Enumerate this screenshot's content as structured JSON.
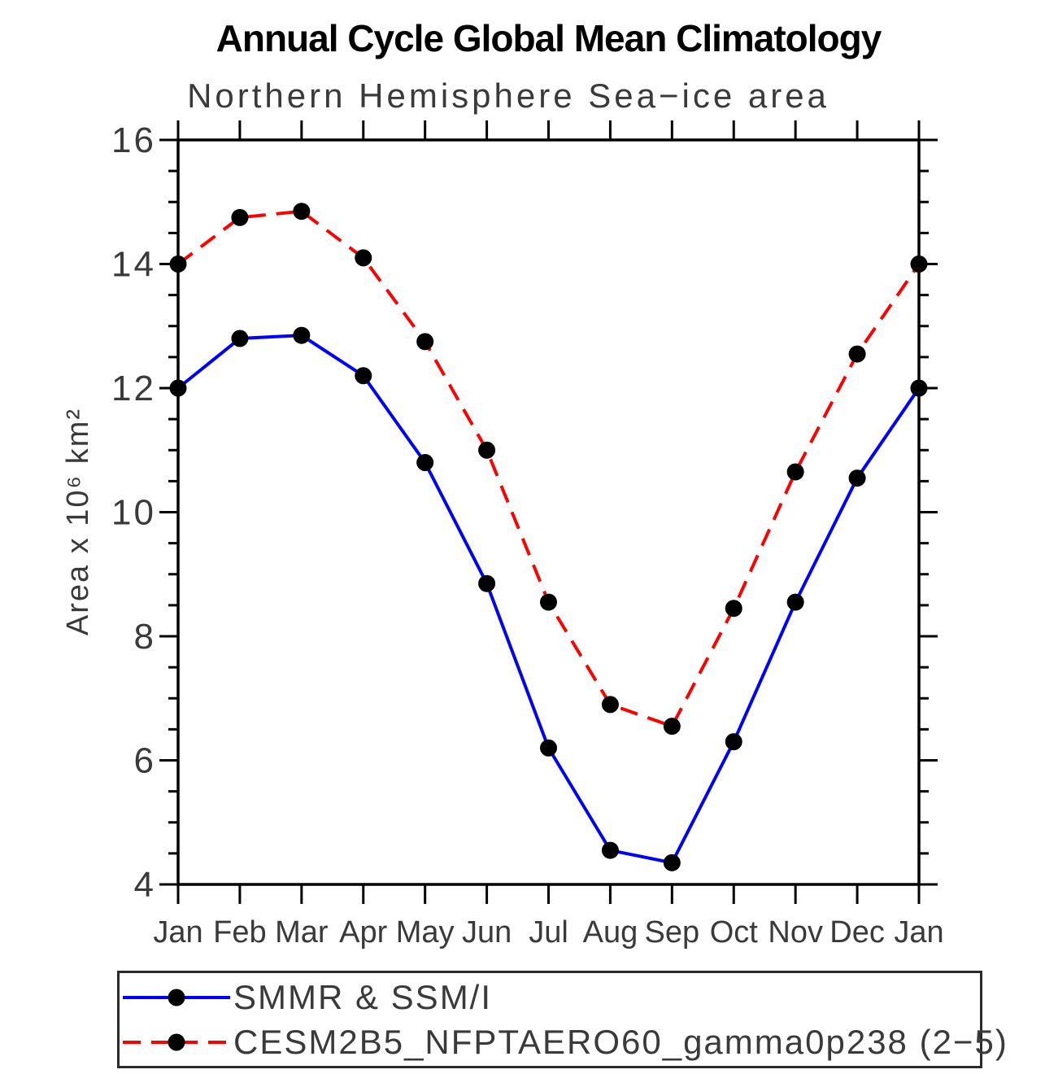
{
  "page": {
    "background": "#ffffff"
  },
  "chart_data": {
    "type": "line",
    "title": "Annual Cycle Global Mean Climatology",
    "subtitle": "Northern Hemisphere Sea−ice area",
    "ylabel": "Area x 10⁶ km²",
    "xlabel": "",
    "categories": [
      "Jan",
      "Feb",
      "Mar",
      "Apr",
      "May",
      "Jun",
      "Jul",
      "Aug",
      "Sep",
      "Oct",
      "Nov",
      "Dec",
      "Jan"
    ],
    "ylim": [
      4,
      16
    ],
    "yticks_major": [
      4,
      6,
      8,
      10,
      12,
      14,
      16
    ],
    "ytick_minor_step": 0.5,
    "grid": false,
    "legend_position": "bottom",
    "frame_color": "#000000",
    "marker_color": "#000000",
    "series": [
      {
        "name": "SMMR & SSM/I",
        "color": "#0000ff",
        "style": "solid",
        "marker": "circle",
        "values": [
          12.0,
          12.8,
          12.85,
          12.2,
          10.8,
          8.85,
          6.2,
          4.55,
          4.35,
          6.3,
          8.55,
          10.55,
          12.0
        ]
      },
      {
        "name": "CESM2B5_NFPTAERO60_gamma0p238 (2−5)",
        "color": "#ff0000",
        "style": "dashed",
        "marker": "circle",
        "values": [
          14.0,
          14.75,
          14.85,
          14.1,
          12.75,
          11.0,
          8.55,
          6.9,
          6.55,
          8.45,
          10.65,
          12.55,
          14.0
        ]
      }
    ]
  }
}
